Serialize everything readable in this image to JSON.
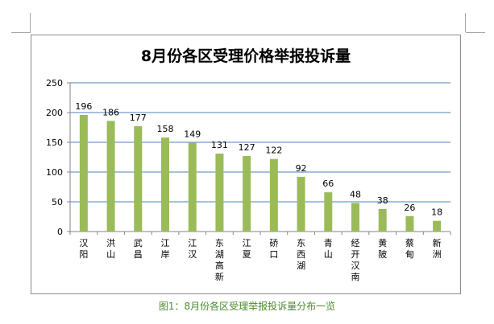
{
  "chart_data": {
    "type": "bar",
    "title": "8月份各区受理价格举报投诉量",
    "categories": [
      "汉阳",
      "洪山",
      "武昌",
      "江岸",
      "江汉",
      "东湖高新",
      "江夏",
      "硚口",
      "东西湖",
      "青山",
      "经开汉南",
      "黄陂",
      "蔡甸",
      "新洲"
    ],
    "values": [
      196,
      186,
      177,
      158,
      149,
      131,
      127,
      122,
      92,
      66,
      48,
      38,
      26,
      18
    ],
    "yticks": [
      "0",
      "50",
      "100",
      "150",
      "200",
      "250"
    ],
    "ylim": [
      0,
      250
    ],
    "grid": true,
    "legend": "none",
    "data_labels": true,
    "colors": {
      "bar": "#9bbb59",
      "grid": "#4f81bd",
      "axis": "#868686"
    }
  },
  "caption": "图1：8月份各区受理举报投诉量分布一览"
}
